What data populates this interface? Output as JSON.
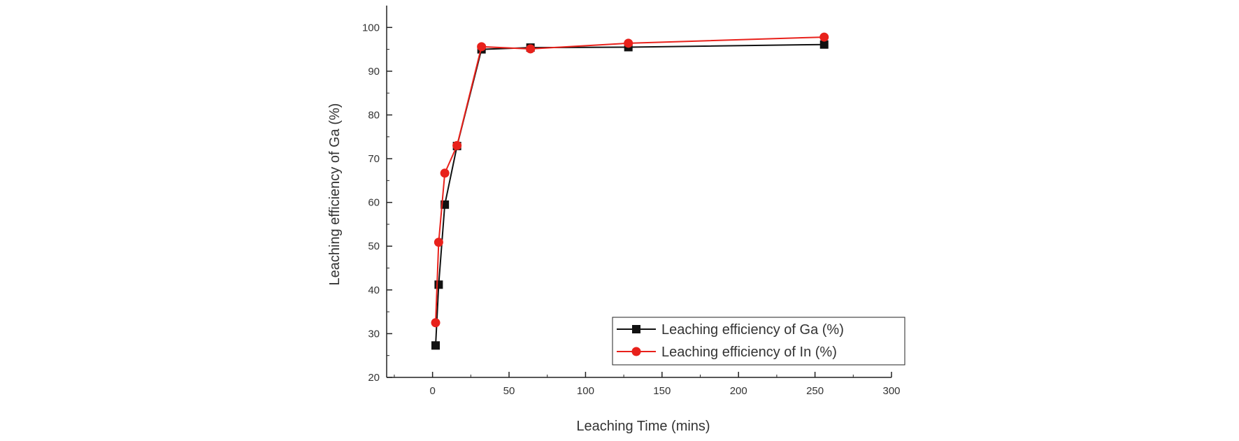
{
  "colors": {
    "ga": "#111111",
    "in": "#e8211b",
    "axis": "#222222"
  },
  "chart_data": {
    "type": "line",
    "title": "",
    "xlabel": "Leaching Time (mins)",
    "ylabel": "Leaching efficiency of Ga (%)",
    "xlim": [
      -30,
      300
    ],
    "ylim": [
      20,
      105
    ],
    "xticks": [
      0,
      50,
      100,
      150,
      200,
      250,
      300
    ],
    "yticks": [
      20,
      30,
      40,
      50,
      60,
      70,
      80,
      90,
      100
    ],
    "grid": false,
    "legend_position": "bottom-right",
    "series": [
      {
        "name": "Leaching efficiency of Ga (%)",
        "color": "#111111",
        "marker": "square",
        "x": [
          2,
          4,
          8,
          16,
          32,
          64,
          128,
          256
        ],
        "y": [
          27.3,
          41.2,
          59.5,
          72.9,
          95.0,
          95.4,
          95.5,
          96.1
        ]
      },
      {
        "name": "Leaching efficiency of In   (%)",
        "color": "#e8211b",
        "marker": "circle",
        "x": [
          2,
          4,
          8,
          16,
          32,
          64,
          128,
          256
        ],
        "y": [
          32.5,
          50.9,
          66.7,
          73.0,
          95.6,
          95.1,
          96.4,
          97.8
        ]
      }
    ]
  }
}
